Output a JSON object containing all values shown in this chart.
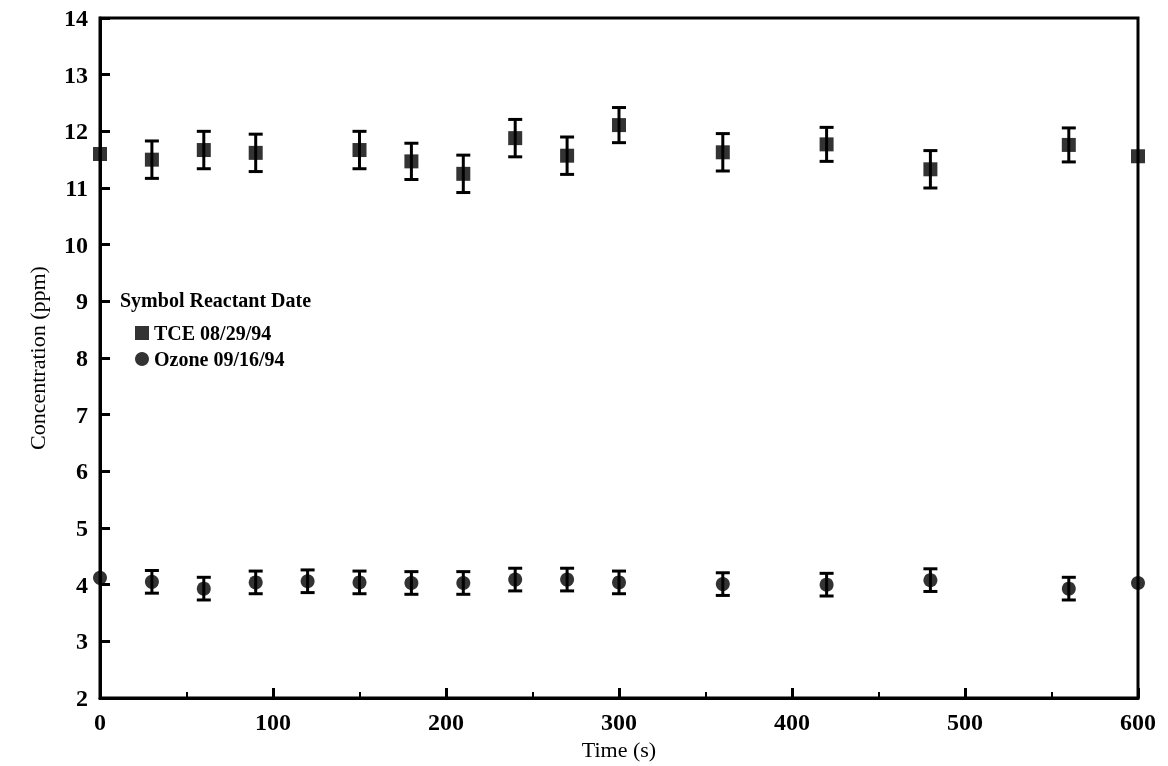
{
  "chart_data": {
    "type": "scatter",
    "xlabel": "Time (s)",
    "ylabel": "Concentration (ppm)",
    "legend_title": "Symbol Reactant Date",
    "x": [
      0,
      30,
      60,
      90,
      120,
      150,
      180,
      210,
      240,
      270,
      300,
      360,
      420,
      480,
      560,
      600
    ],
    "series": [
      {
        "name": "TCE 08/29/94",
        "color": "#000000",
        "marker": "square",
        "x": [
          0,
          30,
          60,
          90,
          150,
          180,
          210,
          240,
          270,
          300,
          360,
          420,
          480,
          560,
          600
        ],
        "values": [
          11.6,
          11.5,
          11.67,
          11.62,
          11.67,
          11.47,
          11.25,
          11.88,
          11.57,
          12.11,
          11.63,
          11.77,
          11.33,
          11.76,
          11.56
        ],
        "errors": [
          null,
          0.33,
          0.33,
          0.33,
          0.33,
          0.32,
          0.33,
          0.33,
          0.33,
          0.31,
          0.33,
          0.3,
          0.33,
          0.3,
          null
        ]
      },
      {
        "name": "Ozone 09/16/94",
        "color": "#000000",
        "marker": "circle",
        "values": [
          4.12,
          4.05,
          3.93,
          4.04,
          4.06,
          4.04,
          4.03,
          4.03,
          4.09,
          4.09,
          4.04,
          4.01,
          4.0,
          4.08,
          3.93,
          4.03
        ],
        "errors": [
          null,
          0.2,
          0.2,
          0.2,
          0.2,
          0.2,
          0.2,
          0.2,
          0.2,
          0.2,
          0.2,
          0.2,
          0.2,
          0.2,
          0.2,
          null
        ]
      }
    ],
    "xlim": [
      0,
      600
    ],
    "xticks": [
      0,
      100,
      200,
      300,
      400,
      500,
      600
    ],
    "ylim": [
      2,
      14
    ],
    "yticks": [
      2,
      3,
      4,
      5,
      6,
      7,
      8,
      9,
      10,
      11,
      12,
      13,
      14
    ],
    "legend": "left",
    "grid": false
  }
}
